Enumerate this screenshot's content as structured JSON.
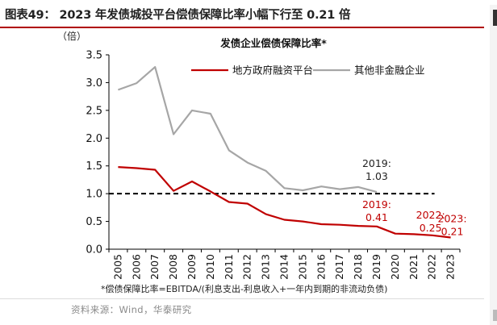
{
  "figure_title": "图表49： 2023 年发债城投平台偿债保障比率小幅下行至 0.21 倍",
  "source_note": "资料来源：Wind，华泰研究",
  "footnote": "*偿债保障比率=EBITDA/(利息支出-利息收入+一年内到期的非流动负债)",
  "colors": {
    "accent": "#b00000",
    "series_red": "#c00000",
    "series_gray": "#a6a6a6",
    "axis": "#000000"
  },
  "chart_data": {
    "type": "line",
    "title": "发债企业偿债保障比率*",
    "ylabel": "（倍）",
    "ylim": [
      0,
      3.5
    ],
    "yticks": [
      "0.0",
      "0.5",
      "1.0",
      "1.5",
      "2.0",
      "2.5",
      "3.0",
      "3.5"
    ],
    "categories": [
      "2005",
      "2006",
      "2007",
      "2008",
      "2009",
      "2010",
      "2011",
      "2012",
      "2013",
      "2014",
      "2015",
      "2016",
      "2017",
      "2018",
      "2019",
      "2020",
      "2021",
      "2022",
      "2023"
    ],
    "series": [
      {
        "name": "地方政府融资平台",
        "color": "#c00000",
        "values": [
          1.48,
          1.46,
          1.43,
          1.05,
          1.22,
          1.04,
          0.85,
          0.82,
          0.63,
          0.53,
          0.5,
          0.45,
          0.44,
          0.42,
          0.41,
          0.28,
          0.27,
          0.25,
          0.21
        ]
      },
      {
        "name": "其他非金融企业",
        "color": "#a6a6a6",
        "values": [
          2.87,
          2.99,
          3.28,
          2.07,
          2.5,
          2.44,
          1.78,
          1.56,
          1.41,
          1.1,
          1.06,
          1.13,
          1.08,
          1.12,
          1.03,
          null,
          null,
          null,
          null
        ]
      }
    ],
    "reference_line": {
      "y": 1.0,
      "style": "dashed"
    },
    "annotations": [
      {
        "series": 1,
        "year": "2019",
        "line1": "2019:",
        "line2": "1.03",
        "color": "#222222"
      },
      {
        "series": 0,
        "year": "2019",
        "line1": "2019:",
        "line2": "0.41",
        "color": "#c00000"
      },
      {
        "series": 0,
        "year": "2022",
        "line1": "2022:",
        "line2": "0.25",
        "color": "#c00000"
      },
      {
        "series": 0,
        "year": "2023",
        "line1": "2023:",
        "line2": "0.21",
        "color": "#c00000"
      }
    ],
    "legend_position": "top-center",
    "grid": false
  }
}
